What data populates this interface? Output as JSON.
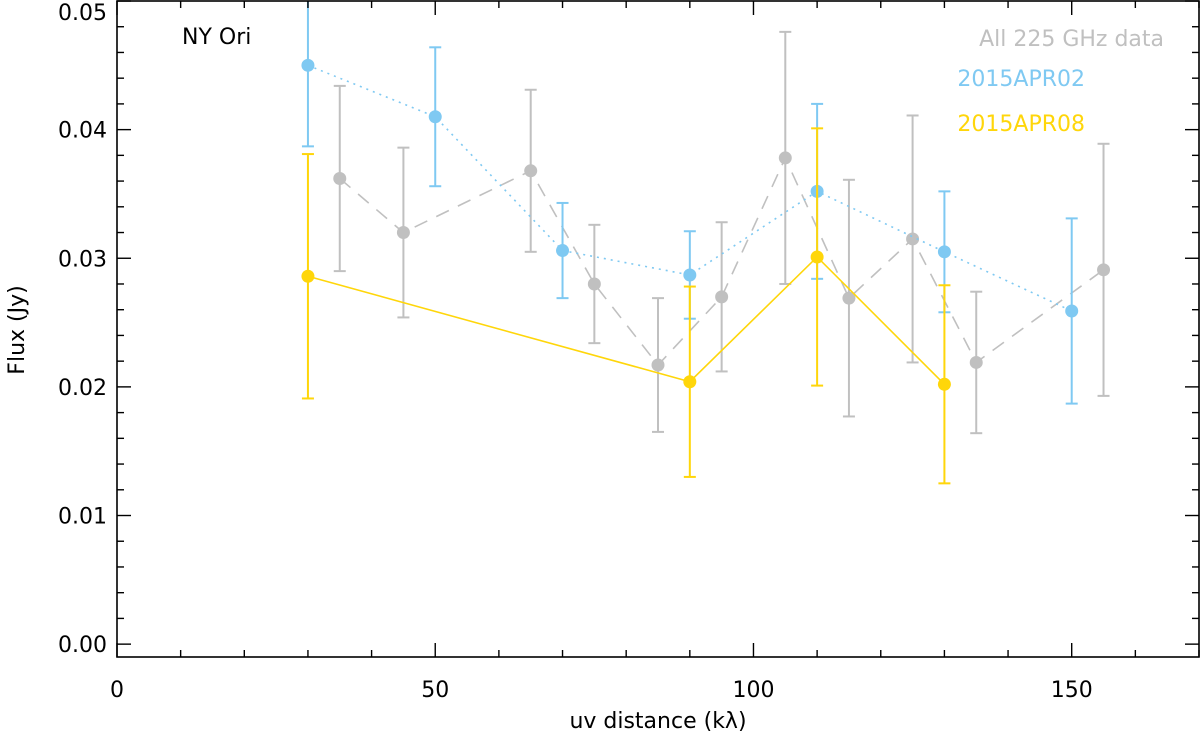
{
  "chart_data": {
    "type": "scatter",
    "title": "",
    "annotation": "NY Ori",
    "xlabel": "uv distance (kλ)",
    "ylabel": "Flux (Jy)",
    "xlim": [
      0,
      170
    ],
    "ylim": [
      -0.001,
      0.05
    ],
    "xticks": [
      0,
      50,
      100,
      150
    ],
    "xtick_labels": [
      "0",
      "50",
      "100",
      "150"
    ],
    "x_minor_step": 10,
    "yticks": [
      0.0,
      0.01,
      0.02,
      0.03,
      0.04,
      0.05
    ],
    "ytick_labels": [
      "0.00",
      "0.01",
      "0.02",
      "0.03",
      "0.04",
      "0.05"
    ],
    "y_minor_step": 0.002,
    "grid": false,
    "legend_position": "top-right",
    "series": [
      {
        "name": "All 225 GHz data",
        "color": "#c0c0c0",
        "line_style": "dashed",
        "x": [
          35,
          45,
          65,
          75,
          85,
          95,
          105,
          115,
          125,
          135,
          155
        ],
        "y": [
          0.0362,
          0.032,
          0.0368,
          0.028,
          0.0217,
          0.027,
          0.0378,
          0.0269,
          0.0315,
          0.0219,
          0.0291
        ],
        "yerr": [
          0.0072,
          0.0066,
          0.0063,
          0.0046,
          0.0052,
          0.0058,
          0.0098,
          0.0092,
          0.0096,
          0.0055,
          0.0098
        ]
      },
      {
        "name": "2015APR02",
        "color": "#7fc9f2",
        "line_style": "dotted",
        "x": [
          30,
          50,
          70,
          90,
          110,
          130,
          150
        ],
        "y": [
          0.045,
          0.041,
          0.0306,
          0.0287,
          0.0352,
          0.0305,
          0.0259
        ],
        "yerr": [
          0.0063,
          0.0054,
          0.0037,
          0.0034,
          0.0068,
          0.0047,
          0.0072
        ]
      },
      {
        "name": "2015APR08",
        "color": "#ffd60a",
        "line_style": "solid",
        "x": [
          30,
          90,
          110,
          130
        ],
        "y": [
          0.0286,
          0.0204,
          0.0301,
          0.0202
        ],
        "yerr": [
          0.0095,
          0.0074,
          0.01,
          0.0077
        ]
      }
    ]
  }
}
